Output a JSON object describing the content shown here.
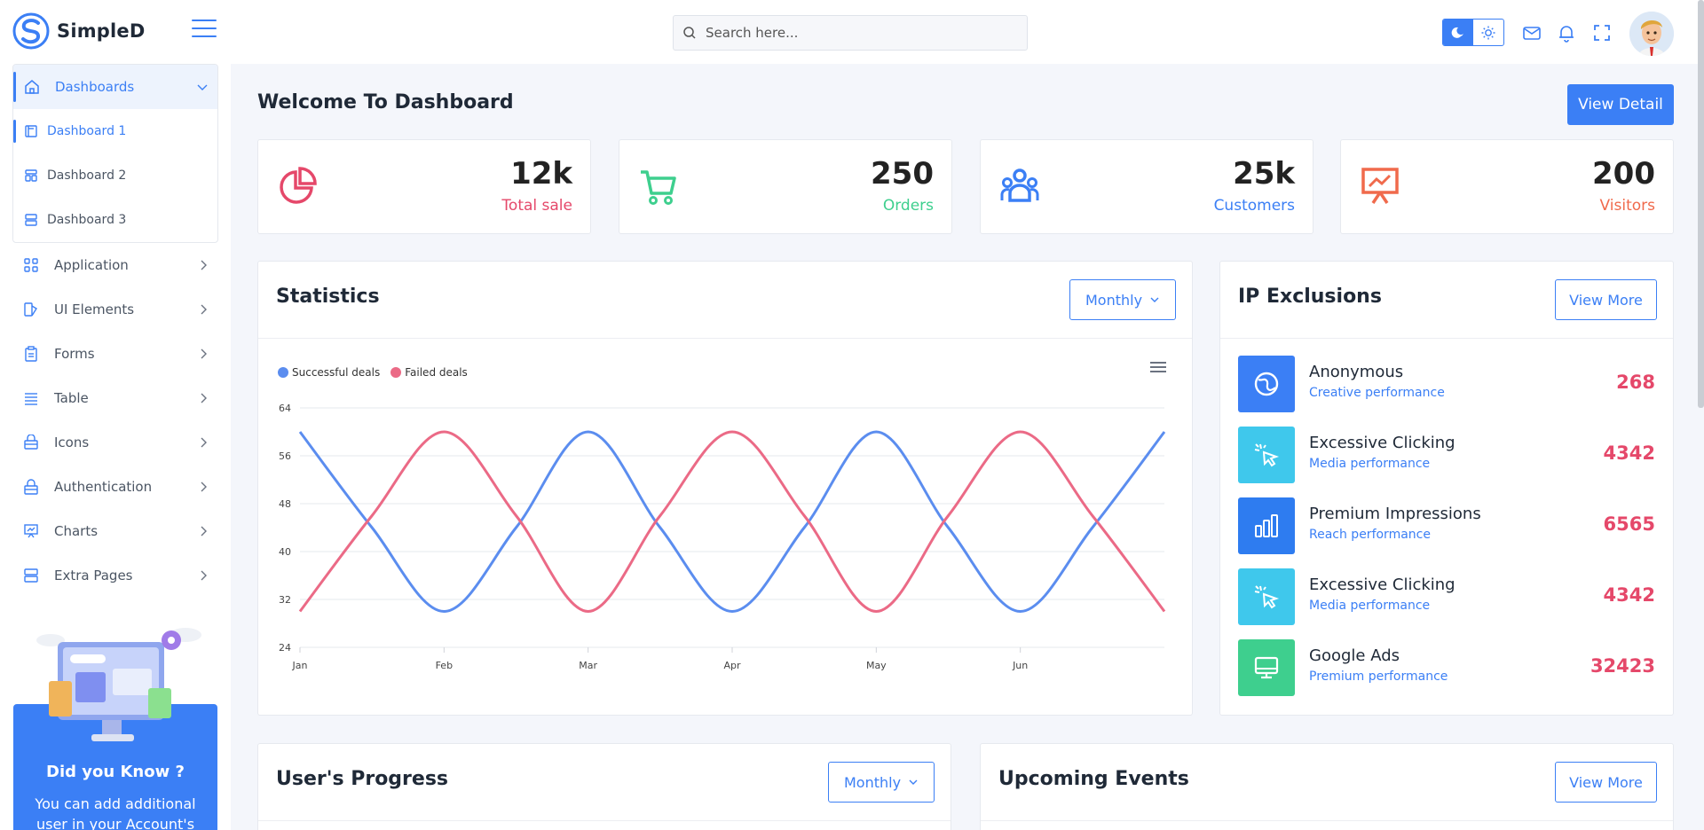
{
  "header": {
    "brand": "SimpleD",
    "search_placeholder": "Search here..."
  },
  "colors": {
    "primary": "#3b7ff5",
    "sale": "#e5486a",
    "orders": "#3ecf8e",
    "customers": "#3b7ff5",
    "visitors": "#f06a4c",
    "successful": "#5b8def",
    "failed": "#eb6a86"
  },
  "sidebar": {
    "dashboards": "Dashboards",
    "sub_items": [
      "Dashboard 1",
      "Dashboard 2",
      "Dashboard 3"
    ],
    "items": [
      "Application",
      "UI Elements",
      "Forms",
      "Table",
      "Icons",
      "Authentication",
      "Charts",
      "Extra Pages"
    ],
    "promo_title": "Did you Know ?",
    "promo_text": "You can add additional user in your Account's"
  },
  "main": {
    "title": "Welcome To Dashboard",
    "view_detail": "View Detail",
    "stats": [
      {
        "value": "12k",
        "label": "Total sale",
        "icon": "pie-chart-icon"
      },
      {
        "value": "250",
        "label": "Orders",
        "icon": "shopping-cart-icon"
      },
      {
        "value": "25k",
        "label": "Customers",
        "icon": "users-icon"
      },
      {
        "value": "200",
        "label": "Visitors",
        "icon": "presentation-icon"
      }
    ]
  },
  "statistics": {
    "title": "Statistics",
    "filter": "Monthly"
  },
  "chart_data": {
    "type": "line",
    "categories": [
      "Jan",
      "Feb",
      "Mar",
      "Apr",
      "May",
      "Jun"
    ],
    "ylim": [
      24,
      64
    ],
    "yticks": [
      24,
      32,
      40,
      48,
      56,
      64
    ],
    "grid": true,
    "legend_position": "top-left",
    "series": [
      {
        "name": "Successful deals",
        "x": [
          0,
          0.5,
          1,
          1.5,
          2,
          2.5,
          3,
          3.5,
          4,
          4.5,
          5,
          5.5,
          6
        ],
        "values": [
          60,
          44,
          30,
          44,
          60,
          44,
          30,
          44,
          60,
          44,
          30,
          44,
          60
        ]
      },
      {
        "name": "Failed deals",
        "x": [
          0,
          0.5,
          1,
          1.5,
          2,
          2.5,
          3,
          3.5,
          4,
          4.5,
          5,
          5.5,
          6
        ],
        "values": [
          30,
          46,
          60,
          46,
          30,
          46,
          60,
          46,
          30,
          46,
          60,
          46,
          30
        ]
      }
    ]
  },
  "ip": {
    "title": "IP Exclusions",
    "view_more": "View More",
    "rows": [
      {
        "name": "Anonymous",
        "sub": "Creative performance",
        "value": "268",
        "icon": "globe-icon",
        "color": "#3b7ff5"
      },
      {
        "name": "Excessive Clicking",
        "sub": "Media performance",
        "value": "4342",
        "icon": "cursor-click-icon",
        "color": "#3fc8ec"
      },
      {
        "name": "Premium Impressions",
        "sub": "Reach performance",
        "value": "6565",
        "icon": "bar-chart-icon",
        "color": "#2e7cf0"
      },
      {
        "name": "Excessive Clicking",
        "sub": "Media performance",
        "value": "4342",
        "icon": "cursor-click-icon",
        "color": "#3fc8ec"
      },
      {
        "name": "Google Ads",
        "sub": "Premium performance",
        "value": "32423",
        "icon": "monitor-icon",
        "color": "#3ecf8e"
      }
    ]
  },
  "progress": {
    "title": "User's Progress",
    "filter": "Monthly"
  },
  "events": {
    "title": "Upcoming Events",
    "view_more": "View More"
  }
}
